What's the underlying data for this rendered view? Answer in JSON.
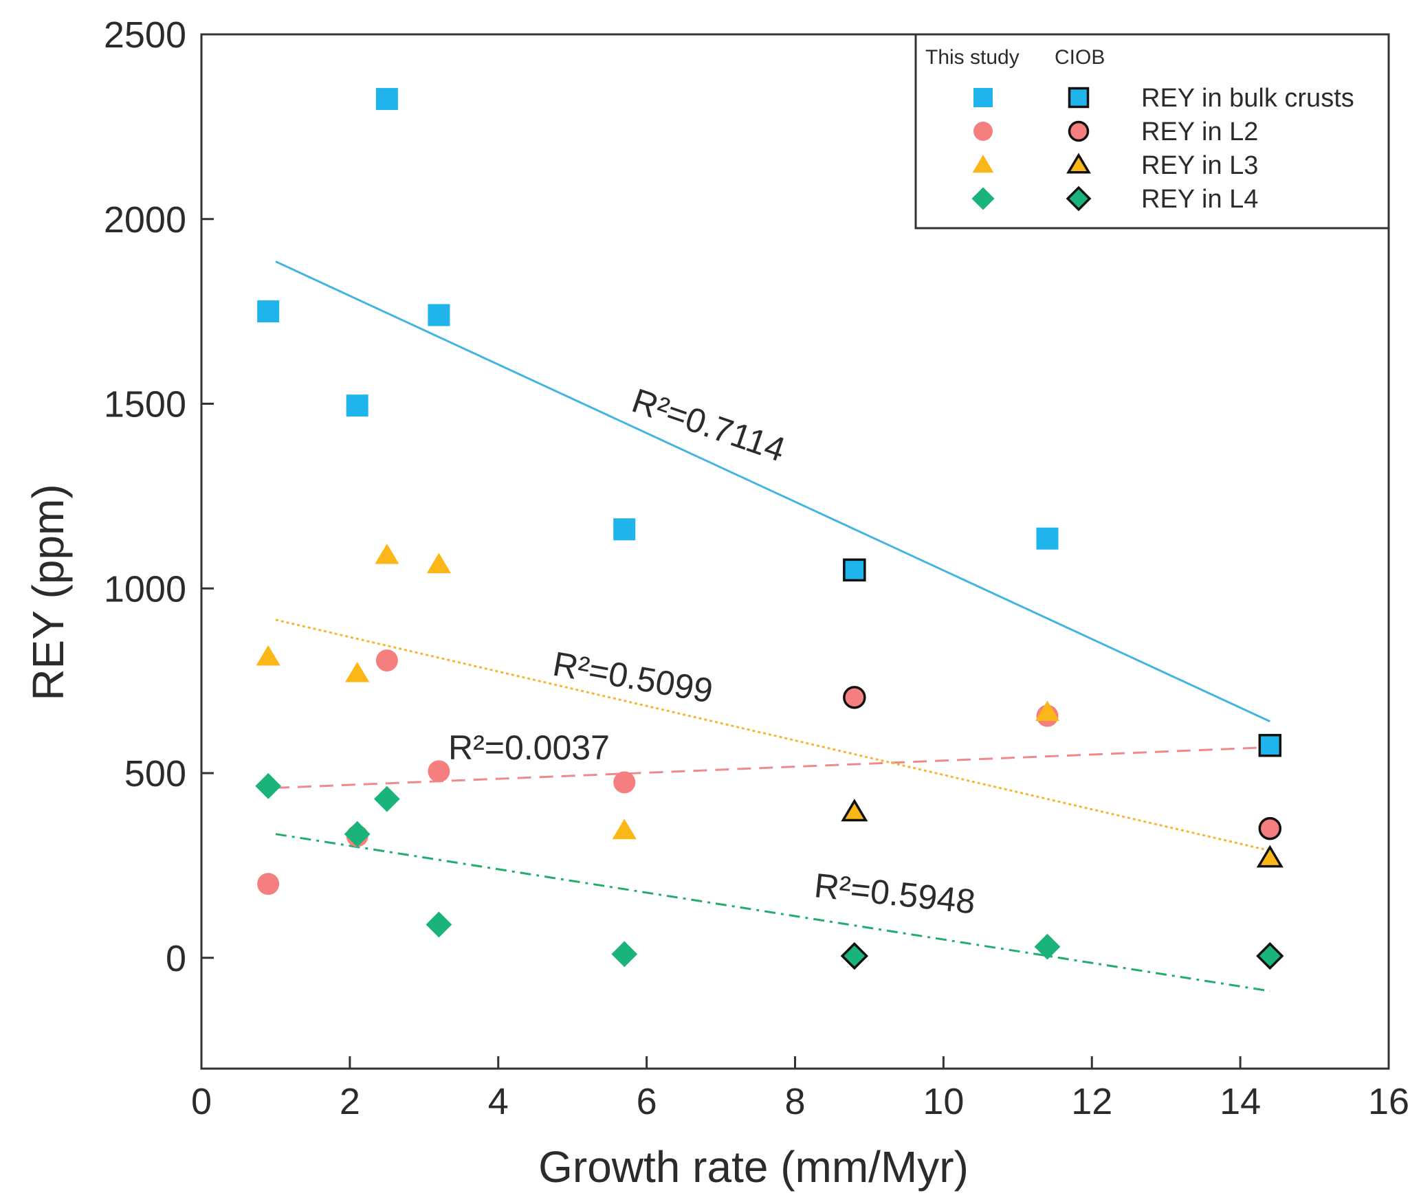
{
  "chart_data": {
    "type": "scatter",
    "xlabel": "Growth rate (mm/Myr)",
    "ylabel": "REY (ppm)",
    "xlim": [
      0,
      16
    ],
    "ylim": [
      -300,
      2500
    ],
    "xticks": [
      0,
      2,
      4,
      6,
      8,
      10,
      12,
      14,
      16
    ],
    "yticks": [
      0,
      500,
      1000,
      1500,
      2000,
      2500
    ],
    "xtick_labels": [
      "0",
      "2",
      "4",
      "6",
      "8",
      "10",
      "12",
      "14",
      "16"
    ],
    "ytick_labels": [
      "0",
      "500",
      "1000",
      "1500",
      "2000",
      "2500"
    ],
    "legend": {
      "header_this_study": "This study",
      "header_ciob": "CIOB",
      "position": "top-right"
    },
    "series": [
      {
        "name": "REY in bulk crusts",
        "marker": "square",
        "color": "#1fb4ec",
        "this_study": [
          [
            0.9,
            1750
          ],
          [
            2.1,
            1495
          ],
          [
            2.5,
            2325
          ],
          [
            3.2,
            1740
          ],
          [
            5.7,
            1160
          ],
          [
            11.4,
            1135
          ]
        ],
        "ciob": [
          [
            8.8,
            1050
          ],
          [
            14.4,
            575
          ]
        ],
        "fit": {
          "x": [
            1.0,
            14.4
          ],
          "y": [
            1885,
            640
          ],
          "style": "solid",
          "color": "#45b4e0",
          "label": "R²=0.7114"
        }
      },
      {
        "name": "REY in L2",
        "marker": "circle",
        "color": "#f57e7e",
        "this_study": [
          [
            0.9,
            200
          ],
          [
            2.1,
            330
          ],
          [
            2.5,
            805
          ],
          [
            3.2,
            505
          ],
          [
            5.7,
            475
          ],
          [
            11.4,
            655
          ]
        ],
        "ciob": [
          [
            8.8,
            705
          ],
          [
            14.4,
            350
          ]
        ],
        "fit": {
          "x": [
            1.0,
            14.4
          ],
          "y": [
            460,
            570
          ],
          "style": "dashed",
          "color": "#f08a8a",
          "label": "R²=0.0037"
        }
      },
      {
        "name": "REY in L3",
        "marker": "triangle",
        "color": "#fbb617",
        "this_study": [
          [
            0.9,
            815
          ],
          [
            2.1,
            770
          ],
          [
            2.5,
            1090
          ],
          [
            3.2,
            1065
          ],
          [
            5.7,
            345
          ],
          [
            11.4,
            665
          ]
        ],
        "ciob": [
          [
            8.8,
            395
          ],
          [
            14.4,
            270
          ]
        ],
        "fit": {
          "x": [
            1.0,
            14.4
          ],
          "y": [
            915,
            290
          ],
          "style": "dotted",
          "color": "#f2b733",
          "label": "R²=0.5099"
        }
      },
      {
        "name": "REY in L4",
        "marker": "diamond",
        "color": "#1ab37a",
        "this_study": [
          [
            0.9,
            465
          ],
          [
            2.1,
            335
          ],
          [
            2.5,
            430
          ],
          [
            3.2,
            90
          ],
          [
            5.7,
            10
          ],
          [
            11.4,
            30
          ]
        ],
        "ciob": [
          [
            8.8,
            5
          ],
          [
            14.4,
            5
          ]
        ],
        "fit": {
          "x": [
            1.0,
            14.4
          ],
          "y": [
            335,
            -90
          ],
          "style": "dashdot",
          "color": "#22ad6e",
          "label": "R²=0.5948"
        }
      }
    ]
  }
}
